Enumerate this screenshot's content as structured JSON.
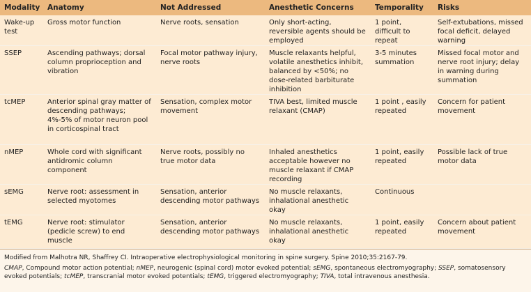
{
  "table": {
    "header": [
      "Modality",
      "Anatomy",
      "Not Addressed",
      "Anesthetic Concerns",
      "Temporality",
      "Risks"
    ],
    "rows": [
      [
        "Wake-up test",
        "Gross motor function",
        "Nerve roots, sensation",
        "Only short-acting, reversible agents should be employed",
        "1 point, difficult to repeat",
        "Self-extubations, missed focal deficit, delayed warning"
      ],
      [
        "SSEP",
        "Ascending pathways; dorsal column proprioception and vibration",
        "Focal motor pathway injury, nerve roots",
        "Muscle relaxants helpful, volatile anesthetics inhibit, balanced by <50%; no dose-related barbiturate inhibition",
        "3-5 minutes summation",
        "Missed focal motor and nerve root injury; delay in warning during summation"
      ],
      [
        "tcMEP",
        "Anterior spinal gray matter of descending pathways; 4%-5% of motor neuron pool in corticospinal tract",
        "Sensation, complex motor movement",
        "TIVA best, limited muscle relaxant (CMAP)",
        "1 point , easily repeated",
        "Concern for patient movement"
      ],
      [
        "nMEP",
        "Whole cord with significant antidromic column component",
        "Nerve roots, possibly no true motor data",
        "Inhaled anesthetics acceptable however no muscle relaxant if CMAP recording",
        "1 point, easily repeated",
        "Possible lack of true motor data"
      ],
      [
        "sEMG",
        "Nerve root: assessment in selected myotomes",
        "Sensation, anterior descending motor pathways",
        "No muscle relaxants, inhalational anesthetic okay",
        "Continuous",
        ""
      ],
      [
        "tEMG",
        "Nerve root: stimulator (pedicle screw) to end muscle",
        "Sensation, anterior descending motor pathways",
        "No muscle relaxants, inhalational anesthetic okay",
        "1 point, easily repeated",
        "Concern about patient movement"
      ]
    ]
  },
  "footer": {
    "source": "Modified from Malhotra NR, Shaffrey CI. Intraoperative electrophysiological monitoring in spine surgery. Spine 2010;35:2167-79.",
    "abbreviations": [
      {
        "term": "CMAP",
        "text": ", Compound motor action potential; "
      },
      {
        "term": "nMEP",
        "text": ", neurogenic (spinal cord) motor evoked potential; "
      },
      {
        "term": "sEMG",
        "text": ", spontaneous electromyography; "
      },
      {
        "term": "SSEP",
        "text": ", somatosensory evoked potentials; "
      },
      {
        "term": "tcMEP",
        "text": ", transcranial motor evoked potentials; "
      },
      {
        "term": "tEMG",
        "text": ", triggered electromyography; "
      },
      {
        "term": "TIVA",
        "text": ", total intravenous anesthesia."
      }
    ]
  }
}
